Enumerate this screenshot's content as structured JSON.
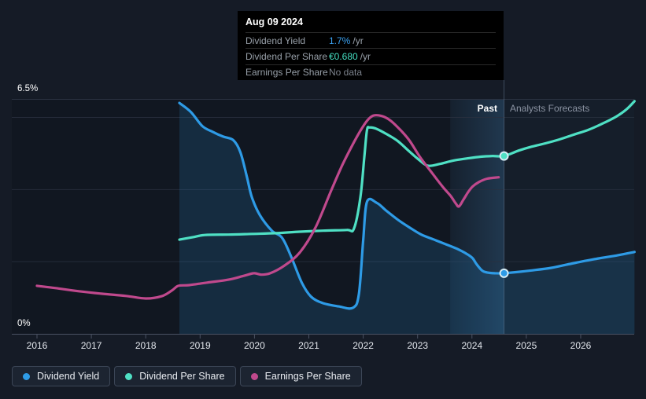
{
  "tooltip": {
    "date": "Aug 09 2024",
    "rows": [
      {
        "label": "Dividend Yield",
        "value": "1.7%",
        "unit": "/yr",
        "value_color": "#3BA2F1"
      },
      {
        "label": "Dividend Per Share",
        "value": "€0.680",
        "unit": "/yr",
        "value_color": "#45DFC2"
      },
      {
        "label": "Earnings Per Share",
        "value": "No data",
        "unit": "",
        "value_color": "#7C828C"
      }
    ]
  },
  "zones": {
    "past_label": "Past",
    "forecast_label": "Analysts Forecasts"
  },
  "legend": [
    {
      "label": "Dividend Yield",
      "color": "#2E9BE6"
    },
    {
      "label": "Dividend Per Share",
      "color": "#4FE0C4"
    },
    {
      "label": "Earnings Per Share",
      "color": "#C0498D"
    }
  ],
  "colors": {
    "background": "#151B26",
    "plot_background": "#11161F",
    "gridline": "#2A3140",
    "axis": "#4A5263",
    "divider": "#6E87A0",
    "tooltip_background": "#000000",
    "dividend_yield": "#2E9BE6",
    "dividend_per_share": "#4FE0C4",
    "earnings_per_share": "#C0498D",
    "marker_ring": "#D6ECF5",
    "past_band_highlight": "#3E78A8"
  },
  "chart_data": {
    "type": "line",
    "title": "Dividend yield history and analyst forecasts",
    "x_axis": {
      "tick_labels": [
        "2016",
        "2017",
        "2018",
        "2019",
        "2020",
        "2021",
        "2022",
        "2023",
        "2024",
        "2025",
        "2026"
      ],
      "start_year": 2016,
      "end_year": 2027
    },
    "y_axis": {
      "top_label": "6.5%",
      "bottom_label": "0%",
      "min": 0,
      "max": 6.5,
      "gridline_values": [
        6.5,
        6,
        4,
        2,
        0
      ]
    },
    "divider_year": 2024.59,
    "past_band": {
      "start_year": 2023.6,
      "end_year": 2024.59
    },
    "series": [
      {
        "name": "Dividend Yield",
        "color": "#2E9BE6",
        "area_fill": true,
        "marker": {
          "year": 2024.59,
          "value": 1.68
        },
        "points": [
          [
            2018.62,
            6.4
          ],
          [
            2018.83,
            6.15
          ],
          [
            2019.04,
            5.76
          ],
          [
            2019.23,
            5.6
          ],
          [
            2019.42,
            5.47
          ],
          [
            2019.61,
            5.37
          ],
          [
            2019.74,
            5.04
          ],
          [
            2019.86,
            4.36
          ],
          [
            2019.95,
            3.8
          ],
          [
            2020.1,
            3.29
          ],
          [
            2020.32,
            2.86
          ],
          [
            2020.51,
            2.66
          ],
          [
            2020.68,
            2.12
          ],
          [
            2020.87,
            1.42
          ],
          [
            2021.04,
            1.03
          ],
          [
            2021.26,
            0.85
          ],
          [
            2021.55,
            0.76
          ],
          [
            2021.81,
            0.72
          ],
          [
            2021.92,
            1.1
          ],
          [
            2022.0,
            2.6
          ],
          [
            2022.07,
            3.66
          ],
          [
            2022.25,
            3.63
          ],
          [
            2022.42,
            3.42
          ],
          [
            2022.64,
            3.16
          ],
          [
            2022.86,
            2.94
          ],
          [
            2023.07,
            2.75
          ],
          [
            2023.29,
            2.62
          ],
          [
            2023.51,
            2.49
          ],
          [
            2023.72,
            2.36
          ],
          [
            2023.9,
            2.22
          ],
          [
            2024.01,
            2.1
          ],
          [
            2024.09,
            1.92
          ],
          [
            2024.19,
            1.75
          ],
          [
            2024.28,
            1.7
          ],
          [
            2024.42,
            1.68
          ],
          [
            2024.59,
            1.68
          ],
          [
            2024.88,
            1.72
          ],
          [
            2025.17,
            1.77
          ],
          [
            2025.46,
            1.83
          ],
          [
            2025.75,
            1.92
          ],
          [
            2026.04,
            2.01
          ],
          [
            2026.33,
            2.09
          ],
          [
            2026.65,
            2.17
          ],
          [
            2026.99,
            2.27
          ]
        ]
      },
      {
        "name": "Dividend Per Share",
        "color": "#4FE0C4",
        "area_fill": false,
        "marker": {
          "year": 2024.59,
          "value": 4.93
        },
        "points": [
          [
            2018.62,
            2.61
          ],
          [
            2018.87,
            2.68
          ],
          [
            2019.09,
            2.74
          ],
          [
            2019.52,
            2.75
          ],
          [
            2019.96,
            2.77
          ],
          [
            2020.39,
            2.79
          ],
          [
            2020.83,
            2.83
          ],
          [
            2021.26,
            2.86
          ],
          [
            2021.7,
            2.88
          ],
          [
            2021.83,
            2.92
          ],
          [
            2021.95,
            3.8
          ],
          [
            2022.02,
            4.9
          ],
          [
            2022.07,
            5.65
          ],
          [
            2022.12,
            5.72
          ],
          [
            2022.25,
            5.68
          ],
          [
            2022.45,
            5.52
          ],
          [
            2022.64,
            5.34
          ],
          [
            2022.83,
            5.08
          ],
          [
            2023.03,
            4.82
          ],
          [
            2023.19,
            4.66
          ],
          [
            2023.41,
            4.71
          ],
          [
            2023.65,
            4.8
          ],
          [
            2023.9,
            4.86
          ],
          [
            2024.16,
            4.91
          ],
          [
            2024.38,
            4.93
          ],
          [
            2024.59,
            4.93
          ],
          [
            2024.86,
            5.08
          ],
          [
            2025.1,
            5.19
          ],
          [
            2025.35,
            5.28
          ],
          [
            2025.61,
            5.39
          ],
          [
            2025.87,
            5.52
          ],
          [
            2026.13,
            5.65
          ],
          [
            2026.39,
            5.82
          ],
          [
            2026.65,
            6.02
          ],
          [
            2026.84,
            6.22
          ],
          [
            2026.99,
            6.45
          ]
        ]
      },
      {
        "name": "Earnings Per Share",
        "color": "#C0498D",
        "area_fill": false,
        "points": [
          [
            2016.0,
            1.33
          ],
          [
            2016.33,
            1.27
          ],
          [
            2016.77,
            1.18
          ],
          [
            2017.2,
            1.11
          ],
          [
            2017.64,
            1.05
          ],
          [
            2018.0,
            0.98
          ],
          [
            2018.29,
            1.04
          ],
          [
            2018.48,
            1.2
          ],
          [
            2018.6,
            1.33
          ],
          [
            2018.8,
            1.35
          ],
          [
            2019.13,
            1.42
          ],
          [
            2019.52,
            1.5
          ],
          [
            2019.81,
            1.61
          ],
          [
            2019.99,
            1.68
          ],
          [
            2020.13,
            1.64
          ],
          [
            2020.29,
            1.68
          ],
          [
            2020.54,
            1.88
          ],
          [
            2020.83,
            2.25
          ],
          [
            2021.12,
            2.94
          ],
          [
            2021.41,
            3.97
          ],
          [
            2021.62,
            4.69
          ],
          [
            2021.84,
            5.34
          ],
          [
            2022.01,
            5.78
          ],
          [
            2022.13,
            6.0
          ],
          [
            2022.23,
            6.06
          ],
          [
            2022.38,
            6.02
          ],
          [
            2022.52,
            5.89
          ],
          [
            2022.71,
            5.61
          ],
          [
            2022.86,
            5.34
          ],
          [
            2023.04,
            4.91
          ],
          [
            2023.26,
            4.47
          ],
          [
            2023.46,
            4.08
          ],
          [
            2023.61,
            3.82
          ],
          [
            2023.7,
            3.62
          ],
          [
            2023.76,
            3.53
          ],
          [
            2023.84,
            3.71
          ],
          [
            2023.93,
            3.93
          ],
          [
            2024.01,
            4.08
          ],
          [
            2024.13,
            4.21
          ],
          [
            2024.28,
            4.3
          ],
          [
            2024.49,
            4.34
          ]
        ]
      }
    ]
  }
}
